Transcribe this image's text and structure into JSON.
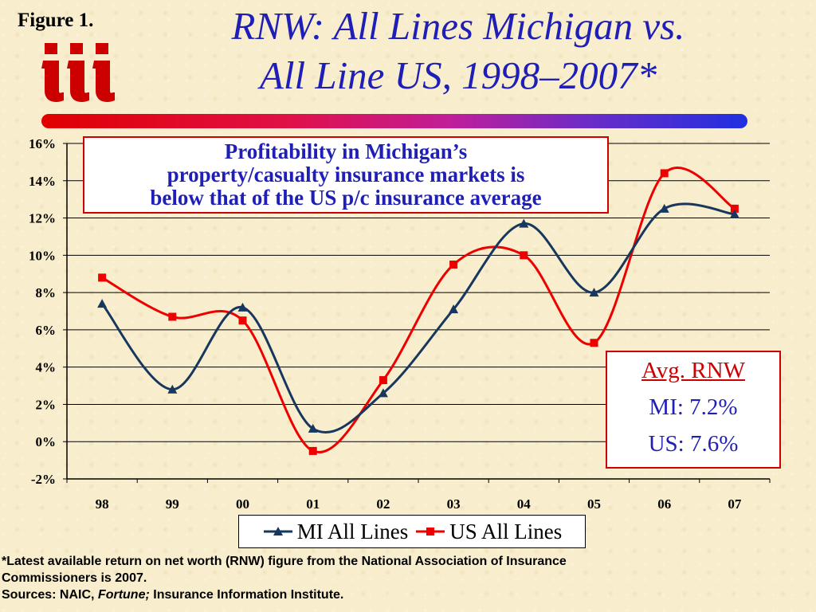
{
  "figure_label": "Figure 1.",
  "logo": {
    "text": "iii",
    "color": "#cc0000"
  },
  "title": {
    "line1": "RNW: All Lines Michigan vs.",
    "line2": "All Line US, 1998–2007*",
    "color": "#1f1fb8"
  },
  "callout": {
    "line1": "Profitability in Michigan’s",
    "line2": "property/casualty insurance markets is",
    "line3": "below that of the US p/c insurance average"
  },
  "avg_box": {
    "title": "Avg. RNW",
    "mi": "MI:  7.2%",
    "us": "US: 7.6%"
  },
  "footnote": {
    "line1": "*Latest available return on net worth (RNW) figure from the National Association of Insurance",
    "line2": "Commissioners is 2007.",
    "sources_prefix": "Sources:  NAIC, ",
    "sources_italic": "Fortune;",
    "sources_suffix": " Insurance Information Institute."
  },
  "chart_data": {
    "type": "line",
    "categories": [
      "98",
      "99",
      "00",
      "01",
      "02",
      "03",
      "04",
      "05",
      "06",
      "07"
    ],
    "y_tick_labels": [
      "16%",
      "14%",
      "12%",
      "10%",
      "8%",
      "6%",
      "4%",
      "2%",
      "0%",
      "-2%"
    ],
    "ylim": [
      -2,
      16
    ],
    "y_step": 2,
    "grid": true,
    "legend_position": "bottom",
    "series": [
      {
        "name": "MI All Lines",
        "color": "#17375e",
        "marker": "triangle",
        "values": [
          7.4,
          2.8,
          7.2,
          0.7,
          2.6,
          7.1,
          11.7,
          8.0,
          12.5,
          12.2
        ]
      },
      {
        "name": "US All Lines",
        "color": "#ee0000",
        "marker": "square",
        "values": [
          8.8,
          6.7,
          6.5,
          -0.5,
          3.3,
          9.5,
          10.0,
          5.3,
          14.4,
          12.5
        ]
      }
    ]
  }
}
